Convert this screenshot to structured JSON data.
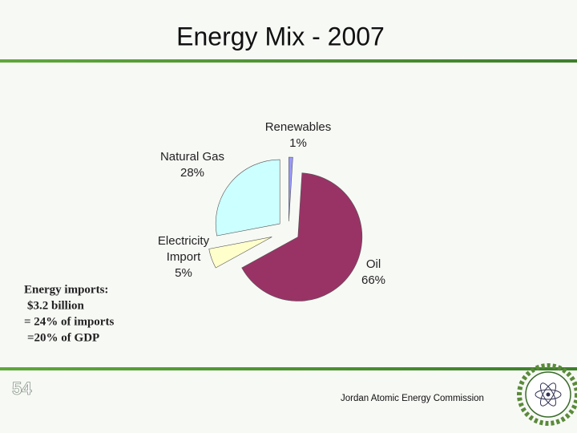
{
  "chart_data": {
    "type": "pie",
    "title": "Energy Mix - 2007",
    "categories": [
      "Renewables",
      "Oil",
      "Electricity Import",
      "Natural Gas"
    ],
    "values": [
      1,
      66,
      5,
      28
    ],
    "value_labels": [
      "1%",
      "66%",
      "5%",
      "28%"
    ],
    "colors": [
      "#9999ff",
      "#993366",
      "#ffffcc",
      "#ccffff"
    ]
  },
  "note": [
    "Energy imports:",
    "$3.2 billion",
    "= 24% of imports",
    "=20% of GDP"
  ],
  "page_number": "54",
  "footer": "Jordan Atomic Energy Commission"
}
